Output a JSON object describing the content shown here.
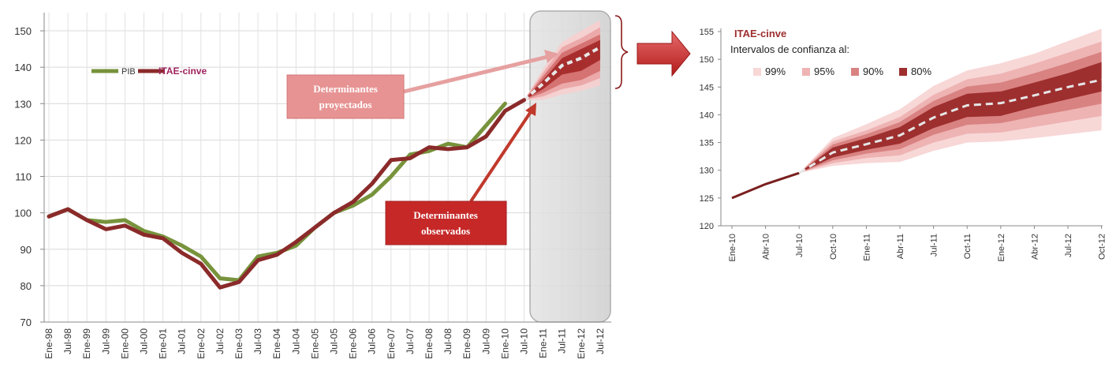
{
  "chart_data": [
    {
      "type": "line",
      "title": "",
      "xlabel": "",
      "ylabel": "",
      "ylim": [
        70,
        155
      ],
      "y_ticks": [
        70,
        80,
        90,
        100,
        110,
        120,
        130,
        140,
        150
      ],
      "categories": [
        "Ene-98",
        "Jul-98",
        "Ene-99",
        "Jul-99",
        "Ene-00",
        "Jul-00",
        "Ene-01",
        "Jul-01",
        "Ene-02",
        "Jul-02",
        "Ene-03",
        "Jul-03",
        "Ene-04",
        "Jul-04",
        "Ene-05",
        "Jul-05",
        "Ene-06",
        "Jul-06",
        "Ene-07",
        "Jul-07",
        "Ene-08",
        "Jul-08",
        "Ene-09",
        "Jul-09",
        "Ene-10",
        "Jul-10",
        "Ene-11",
        "Jul-11",
        "Ene-12",
        "Jul-12"
      ],
      "grid": true,
      "legend_position": "top-left",
      "series": [
        {
          "name": "PIB",
          "color": "#77933c",
          "values": [
            99,
            101,
            98,
            97.5,
            98,
            95,
            93.5,
            91,
            88,
            82,
            81.5,
            88,
            89,
            91,
            96,
            100,
            102,
            105,
            110,
            116,
            117,
            119,
            118,
            124,
            130,
            null,
            null,
            null,
            null,
            null
          ]
        },
        {
          "name": "ITAE-cinve",
          "color": "#8b2a2a",
          "values": [
            99,
            101,
            98,
            95.5,
            96.5,
            94,
            93,
            89,
            86,
            79.5,
            81,
            87,
            88.5,
            92,
            96,
            100,
            103,
            108,
            114.5,
            115,
            118,
            117.5,
            118,
            121,
            128,
            131,
            null,
            null,
            null,
            null
          ]
        }
      ],
      "projection": {
        "label": "ITAE-cinve projection",
        "start_index": 25,
        "median": [
          131,
          135.5,
          140.5,
          142.5,
          145.5
        ],
        "bands": [
          {
            "level": "99%",
            "color": "#f6d0d0",
            "lower": [
              131,
              131,
              132.5,
              133.5,
              135
            ],
            "upper": [
              131,
              139.5,
              147,
              150,
              153
            ]
          },
          {
            "level": "95%",
            "color": "#eba6a6",
            "lower": [
              131,
              132,
              134,
              135,
              137
            ],
            "upper": [
              131,
              138.5,
              145.5,
              148,
              151
            ]
          },
          {
            "level": "90%",
            "color": "#d46f6f",
            "lower": [
              131,
              133,
              135.5,
              136.5,
              139
            ],
            "upper": [
              131,
              137.5,
              144,
              146.5,
              149
            ]
          },
          {
            "level": "80%",
            "color": "#a52a2a",
            "lower": [
              131,
              134,
              138,
              139,
              142
            ],
            "upper": [
              131,
              136.5,
              142.5,
              145,
              147.5
            ]
          }
        ]
      },
      "annotations": {
        "projected": "Determinantes proyectados",
        "observed": "Determinantes observados"
      }
    },
    {
      "type": "area",
      "title": "ITAE-cinve",
      "subtitle": "Intervalos de confianza al:",
      "xlabel": "",
      "ylabel": "",
      "ylim": [
        120,
        155
      ],
      "y_ticks": [
        120,
        125,
        130,
        135,
        140,
        145,
        150,
        155
      ],
      "categories": [
        "Ene-10",
        "Abr-10",
        "Jul-10",
        "Oct-10",
        "Ene-11",
        "Abr-11",
        "Jul-11",
        "Oct-11",
        "Ene-12",
        "Abr-12",
        "Jul-12",
        "Oct-12"
      ],
      "grid": false,
      "legend_position": "top-left",
      "observed": [
        125,
        127.5,
        129.5,
        null,
        null,
        null,
        null,
        null,
        null,
        null,
        null,
        null
      ],
      "median": [
        null,
        null,
        129.5,
        133.2,
        134.7,
        136.3,
        139.5,
        141.7,
        142.1,
        143.5,
        145,
        146.3
      ],
      "bands": [
        {
          "level": "99%",
          "color": "#f8d7d7",
          "lower": [
            null,
            null,
            129.5,
            130.8,
            131.3,
            131.5,
            133.5,
            135,
            135.2,
            135.8,
            136.5,
            137.2
          ],
          "upper": [
            null,
            null,
            129.5,
            135.8,
            138.3,
            141,
            145.2,
            148,
            149.3,
            151,
            153.3,
            155.5
          ]
        },
        {
          "level": "95%",
          "color": "#eeb3b3",
          "lower": [
            null,
            null,
            129.5,
            131.3,
            132.2,
            132.7,
            135,
            136.6,
            136.8,
            137.8,
            138.8,
            139.8
          ],
          "upper": [
            null,
            null,
            129.5,
            135.2,
            137.2,
            139.6,
            143.6,
            146.4,
            147.4,
            149.2,
            151.2,
            153.2
          ]
        },
        {
          "level": "90%",
          "color": "#d98282",
          "lower": [
            null,
            null,
            129.5,
            131.8,
            133,
            133.8,
            136.4,
            138.2,
            138.5,
            139.7,
            140.8,
            142
          ]
        },
        {
          "level": "80%",
          "color": "#9e2f2f",
          "lower": [
            null,
            null,
            129.5,
            132.3,
            133.7,
            134.8,
            137.6,
            139.6,
            139.8,
            141.4,
            142.8,
            144.2
          ],
          "upper": [
            null,
            null,
            129.5,
            134.1,
            135.8,
            137.8,
            141.4,
            143.8,
            144.2,
            145.8,
            147.5,
            149.5
          ]
        }
      ]
    }
  ],
  "legend_left": [
    {
      "label": "PIB",
      "color": "#77933c"
    },
    {
      "label": "ITAE-cinve",
      "color": "#8b2a2a"
    }
  ],
  "legend_right": [
    {
      "label": "99%",
      "color": "#f8d7d7"
    },
    {
      "label": "95%",
      "color": "#eeb3b3"
    },
    {
      "label": "90%",
      "color": "#d98282"
    },
    {
      "label": "80%",
      "color": "#9e2f2f"
    }
  ]
}
